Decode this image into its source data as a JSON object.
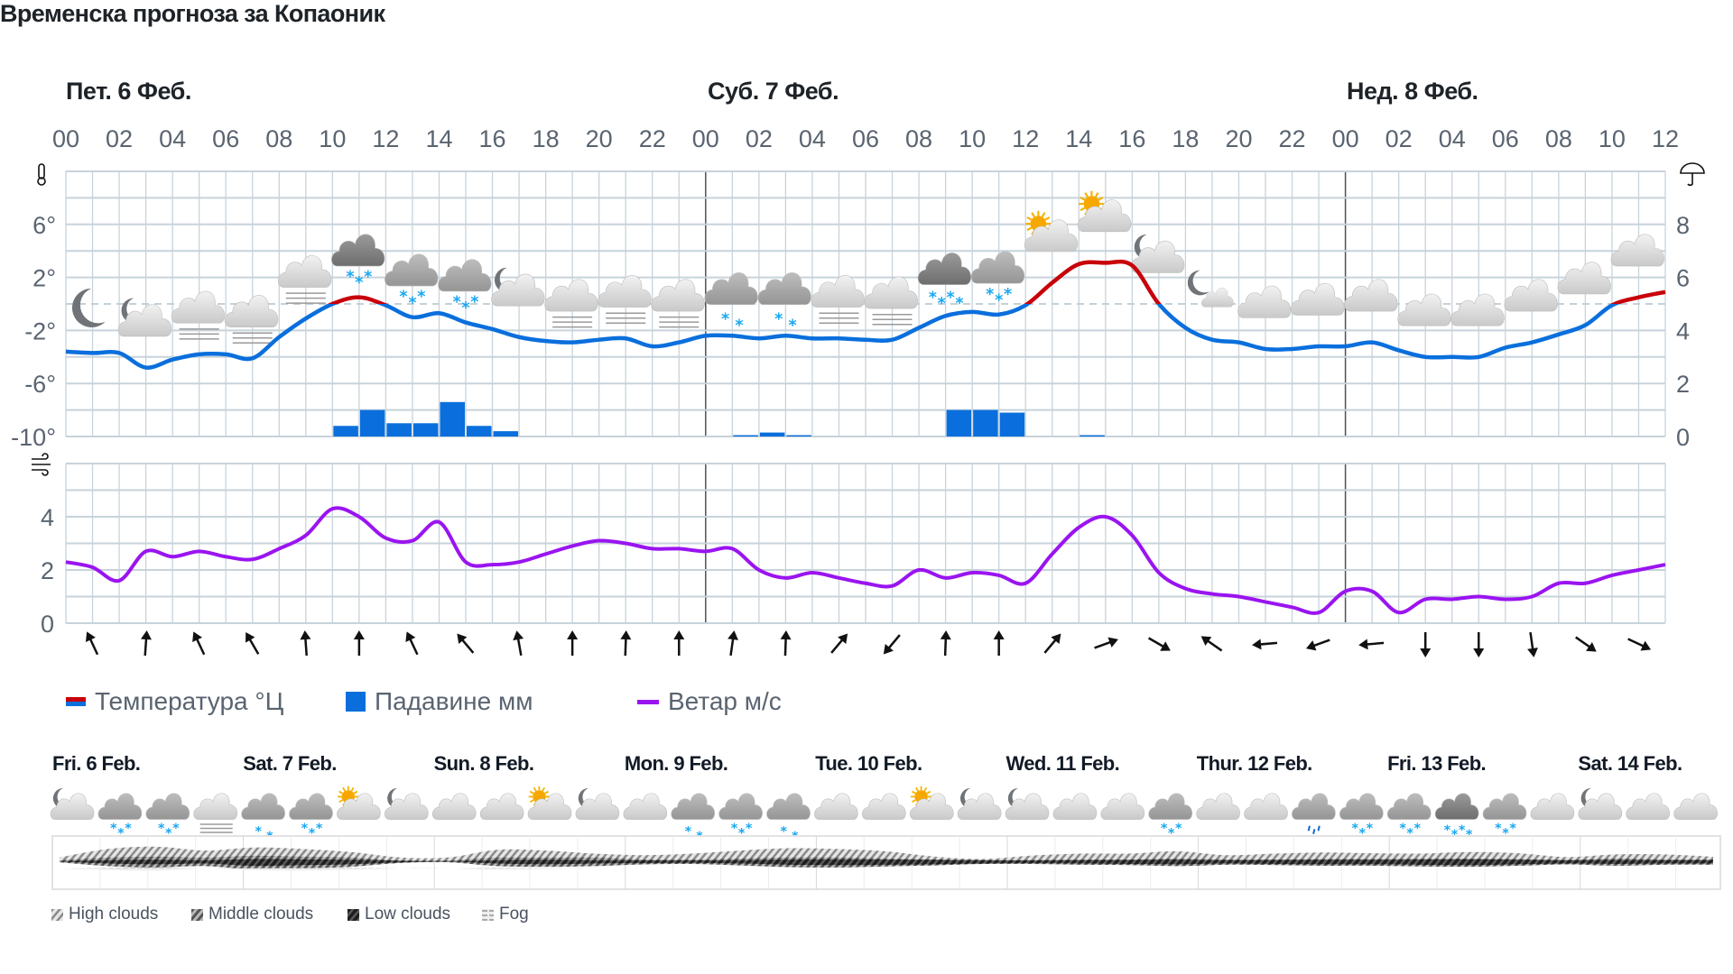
{
  "title": "Временска прогноза за Копаоник",
  "days": [
    "Пет. 6 Феб.",
    "Суб. 7 Феб.",
    "Нед. 8 Феб."
  ],
  "hour_labels": [
    "00",
    "02",
    "04",
    "06",
    "08",
    "10",
    "12",
    "14",
    "16",
    "18",
    "20",
    "22",
    "00",
    "02",
    "04",
    "06",
    "08",
    "10",
    "12",
    "14",
    "16",
    "18",
    "20",
    "22",
    "00",
    "02",
    "04",
    "06",
    "08",
    "10",
    "12"
  ],
  "temp_ticks": [
    "6°",
    "2°",
    "-2°",
    "-6°",
    "-10°"
  ],
  "precip_ticks": [
    "8",
    "6",
    "4",
    "2",
    "0"
  ],
  "wind_ticks": [
    "4",
    "2",
    "0"
  ],
  "legend": {
    "temperature": "Температура °Ц",
    "precipitation": "Падавине мм",
    "wind": "Ветар м/с"
  },
  "colors": {
    "temp_below_zero": "#0a6fdc",
    "temp_above_zero": "#c8000a",
    "precipitation": "#0a6fdc",
    "wind": "#9a14f0",
    "grid": "#c7d3db",
    "day_separator": "#4a525a"
  },
  "icons": {
    "left_top": "thermometer-icon",
    "left_wind": "wind-icon",
    "right_top": "umbrella-icon"
  },
  "chart_data": [
    {
      "type": "line",
      "x_unit": "hour",
      "x": "hourly from Пет. 6 Феб. 00 to Нед. 8 Феб. 12",
      "ylim_temperature": [
        -10,
        10
      ],
      "ylim_precipitation": [
        0,
        10
      ],
      "grid": true,
      "temperature": [
        -3.6,
        -3.7,
        -3.7,
        -4.8,
        -4.2,
        -3.8,
        -3.8,
        -4.1,
        -2.5,
        -1.1,
        0.0,
        0.5,
        -0.1,
        -1.0,
        -0.7,
        -1.4,
        -1.9,
        -2.5,
        -2.8,
        -2.9,
        -2.7,
        -2.6,
        -3.2,
        -2.9,
        -2.4,
        -2.4,
        -2.6,
        -2.4,
        -2.6,
        -2.6,
        -2.7,
        -2.7,
        -1.8,
        -0.9,
        -0.6,
        -0.8,
        -0.1,
        1.6,
        3.0,
        3.1,
        2.9,
        0.0,
        -1.8,
        -2.7,
        -2.9,
        -3.4,
        -3.4,
        -3.2,
        -3.2,
        -2.9,
        -3.5,
        -4.0,
        -4.0,
        -4.0,
        -3.3,
        -2.9,
        -2.3,
        -1.6,
        -0.1,
        0.5,
        0.9
      ],
      "precipitation": [
        0,
        0,
        0,
        0,
        0,
        0,
        0,
        0,
        0,
        0,
        0.4,
        1.0,
        0.5,
        0.5,
        1.3,
        0.4,
        0.2,
        0,
        0,
        0,
        0,
        0,
        0,
        0,
        0,
        0.05,
        0.15,
        0.05,
        0,
        0,
        0,
        0,
        0,
        1.0,
        1.0,
        0.9,
        0,
        0,
        0.05,
        0,
        0,
        0,
        0,
        0,
        0,
        0,
        0,
        0,
        0,
        0,
        0,
        0,
        0,
        0,
        0,
        0,
        0,
        0,
        0,
        0
      ],
      "weather_icons": [
        "moon",
        "moon-cloud",
        "cloud-fog",
        "cloud-fog",
        "cloud-fog",
        "dark-cloud-snow",
        "gray-cloud-snow",
        "gray-cloud-snow",
        "moon-cloud",
        "cloud-fog",
        "cloud-fog",
        "cloud-fog",
        "gray-cloud-light-snow",
        "gray-cloud-light-snow",
        "cloud-fog",
        "cloud-fog",
        "dark-cloud-heavy-snow",
        "gray-cloud-snow",
        "sun-cloud",
        "sun-cloud",
        "moon-cloud",
        "moon-small-cloud",
        "cloud",
        "cloud",
        "cloud",
        "cloud",
        "cloud",
        "cloud",
        "cloud",
        "cloud"
      ]
    },
    {
      "type": "line",
      "ylim": [
        0,
        6
      ],
      "wind_speed": [
        2.3,
        2.1,
        1.6,
        2.7,
        2.5,
        2.7,
        2.5,
        2.4,
        2.8,
        3.3,
        4.3,
        4.0,
        3.2,
        3.1,
        3.8,
        2.3,
        2.2,
        2.3,
        2.6,
        2.9,
        3.1,
        3.0,
        2.8,
        2.8,
        2.7,
        2.8,
        2.0,
        1.7,
        1.9,
        1.7,
        1.5,
        1.4,
        2.0,
        1.7,
        1.9,
        1.8,
        1.5,
        2.6,
        3.6,
        4.0,
        3.3,
        1.9,
        1.3,
        1.1,
        1.0,
        0.8,
        0.6,
        0.4,
        1.2,
        1.2,
        0.4,
        0.9,
        0.9,
        1.0,
        0.9,
        1.0,
        1.5,
        1.5,
        1.8,
        2.0,
        2.2
      ],
      "wind_direction_arrows_deg": [
        335,
        4,
        335,
        330,
        356,
        0,
        335,
        320,
        350,
        0,
        2,
        0,
        8,
        2,
        40,
        220,
        2,
        0,
        40,
        70,
        120,
        305,
        265,
        250,
        265,
        180,
        180,
        172,
        125,
        115
      ]
    },
    {
      "type": "area",
      "days": [
        "Fri. 6 Feb.",
        "Sat. 7 Feb.",
        "Sun. 8 Feb.",
        "Mon. 9 Feb.",
        "Tue. 10 Feb.",
        "Wed. 11 Feb.",
        "Thur. 12 Feb.",
        "Fri. 13 Feb.",
        "Sat. 14 Feb."
      ],
      "icons": [
        "moon-cloud",
        "gray-cloud-snow",
        "gray-cloud-snow",
        "cloud-fog",
        "gray-cloud-light-snow",
        "gray-cloud-snow",
        "sun-cloud",
        "moon-cloud",
        "cloud",
        "cloud",
        "sun-cloud",
        "moon-cloud",
        "cloud",
        "gray-cloud-light-snow",
        "gray-cloud-snow",
        "gray-cloud-light-snow",
        "cloud",
        "cloud",
        "sun-cloud",
        "moon-cloud",
        "moon-cloud",
        "cloud",
        "cloud",
        "gray-cloud-snow",
        "cloud",
        "cloud",
        "gray-cloud-rain",
        "gray-cloud-snow",
        "gray-cloud-snow",
        "dark-cloud-heavy-snow",
        "gray-cloud-snow",
        "cloud",
        "moon-cloud",
        "cloud",
        "cloud"
      ],
      "high_clouds": [
        20,
        60,
        70,
        50,
        60,
        55,
        40,
        20,
        20,
        55,
        50,
        30,
        30,
        40,
        55,
        65,
        60,
        50,
        20,
        10,
        30,
        40,
        40,
        50,
        30,
        40,
        45,
        40,
        35,
        45,
        40,
        20,
        30,
        35,
        20
      ],
      "middle_clouds": [
        10,
        40,
        50,
        40,
        60,
        50,
        40,
        10,
        10,
        40,
        40,
        40,
        20,
        20,
        30,
        40,
        40,
        30,
        20,
        10,
        15,
        20,
        20,
        30,
        20,
        20,
        25,
        25,
        30,
        30,
        25,
        15,
        30,
        20,
        20
      ],
      "low_clouds": [
        5,
        30,
        40,
        30,
        60,
        50,
        40,
        15,
        5,
        30,
        40,
        30,
        25,
        20,
        30,
        45,
        50,
        45,
        40,
        30,
        25,
        30,
        35,
        40,
        30,
        35,
        40,
        40,
        45,
        50,
        40,
        30,
        35,
        30,
        30
      ],
      "fog": [
        0,
        25,
        35,
        0,
        30,
        35,
        20,
        0,
        0,
        20,
        10,
        0,
        0,
        0,
        0,
        0,
        0,
        0,
        0,
        0,
        0,
        0,
        0,
        0,
        0,
        0,
        0,
        0,
        0,
        0,
        0,
        0,
        0,
        0,
        0
      ],
      "legend": [
        "High clouds",
        "Middle clouds",
        "Low clouds",
        "Fog"
      ]
    }
  ]
}
